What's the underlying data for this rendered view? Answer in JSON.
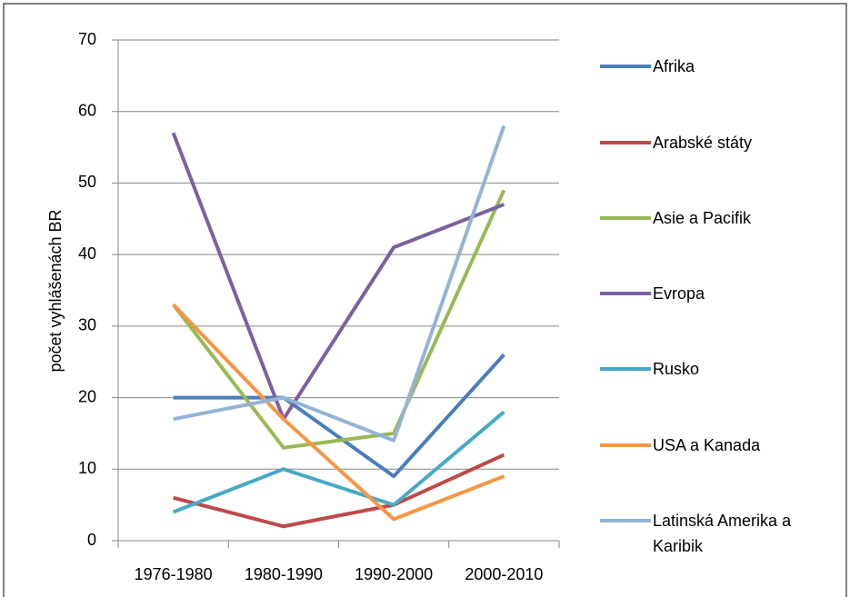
{
  "chart_data": {
    "type": "line",
    "y_label": "počet vyhlášenách BR",
    "categories": [
      "1976-1980",
      "1980-1990",
      "1990-2000",
      "2000-2010"
    ],
    "series": [
      {
        "name": "Afrika",
        "color": "#4a7ebb",
        "values": [
          20,
          20,
          9,
          26
        ]
      },
      {
        "name": "Arabské státy",
        "color": "#be4b48",
        "values": [
          6,
          2,
          5,
          12
        ]
      },
      {
        "name": "Asie a Pacifik",
        "color": "#98b954",
        "values": [
          33,
          13,
          15,
          49
        ]
      },
      {
        "name": "Evropa",
        "color": "#7d60a0",
        "values": [
          57,
          17,
          41,
          47
        ]
      },
      {
        "name": "Rusko",
        "color": "#46aac5",
        "values": [
          4,
          10,
          5,
          18
        ]
      },
      {
        "name": "USA a Kanada",
        "color": "#f79646",
        "values": [
          33,
          17,
          3,
          9
        ]
      },
      {
        "name": "Latinská Amerika a Karibik",
        "color": "#93b3d7",
        "values": [
          17,
          20,
          14,
          58
        ]
      }
    ],
    "ylim": [
      0,
      70
    ],
    "yticks": [
      0,
      10,
      20,
      30,
      40,
      50,
      60,
      70
    ],
    "grid": true,
    "legend": "right"
  }
}
